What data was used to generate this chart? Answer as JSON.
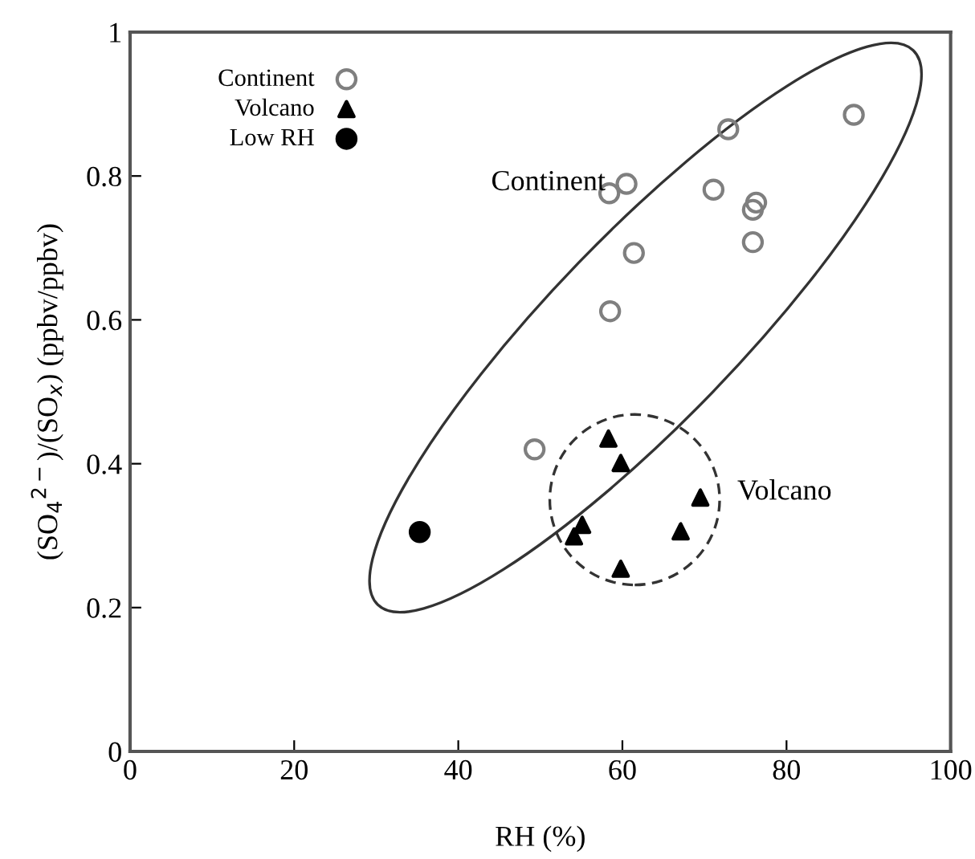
{
  "chart_data": {
    "type": "scatter",
    "xlabel": "RH (%)",
    "ylabel": "(SO$_{4}$$^{2−}$)/(SO$_{x}$) (ppbv/ppbv)",
    "xlim": [
      0,
      100
    ],
    "ylim": [
      0,
      1
    ],
    "xticks": [
      0,
      20,
      40,
      60,
      80,
      100
    ],
    "yticks": [
      0,
      0.2,
      0.4,
      0.6,
      0.8,
      1
    ],
    "grid": false,
    "legend": "top left",
    "annotations": [
      "Continent",
      "Volcano"
    ],
    "series": [
      {
        "name": "Continent",
        "color": "#7f7f7f",
        "marker": "circle",
        "x": [
          72.9,
          88.2,
          58.4,
          60.5,
          71.1,
          76.3,
          75.9,
          61.4,
          75.9,
          58.5,
          49.3
        ],
        "values": [
          0.865,
          0.885,
          0.776,
          0.789,
          0.781,
          0.763,
          0.753,
          0.693,
          0.708,
          0.612,
          0.42
        ]
      },
      {
        "name": "Volcano",
        "color": "#000000",
        "marker": "triangle",
        "x": [
          58.3,
          59.8,
          69.5,
          55.1,
          54.1,
          67.1,
          59.8
        ],
        "values": [
          0.435,
          0.401,
          0.353,
          0.315,
          0.299,
          0.306,
          0.254
        ]
      },
      {
        "name": "Low RH",
        "color": "#000000",
        "marker": "circle",
        "x": [
          35.3
        ],
        "values": [
          0.305
        ]
      }
    ]
  }
}
